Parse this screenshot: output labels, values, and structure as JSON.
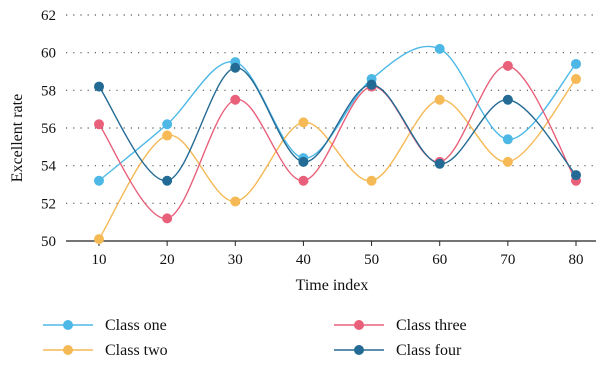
{
  "chart_data": {
    "type": "line",
    "xlabel": "Time index",
    "ylabel": "Excellent rate",
    "x": [
      10,
      20,
      30,
      40,
      50,
      60,
      70,
      80
    ],
    "ylim": [
      50,
      62
    ],
    "yticks": [
      50,
      52,
      54,
      56,
      58,
      60,
      62
    ],
    "grid": "horizontal dotted",
    "legend_position": "bottom",
    "series": [
      {
        "name": "Class one",
        "color": "#4db8e6",
        "values": [
          53.2,
          56.2,
          59.5,
          54.4,
          58.6,
          60.2,
          55.4,
          59.4
        ]
      },
      {
        "name": "Class two",
        "color": "#f5b955",
        "values": [
          50.1,
          55.6,
          52.1,
          56.3,
          53.2,
          57.5,
          54.2,
          58.6
        ]
      },
      {
        "name": "Class three",
        "color": "#e8607a",
        "values": [
          56.2,
          51.2,
          57.5,
          53.2,
          58.2,
          54.2,
          59.3,
          53.2
        ]
      },
      {
        "name": "Class four",
        "color": "#236a94",
        "values": [
          58.2,
          53.2,
          59.2,
          54.2,
          58.3,
          54.1,
          57.5,
          53.5
        ]
      }
    ]
  }
}
